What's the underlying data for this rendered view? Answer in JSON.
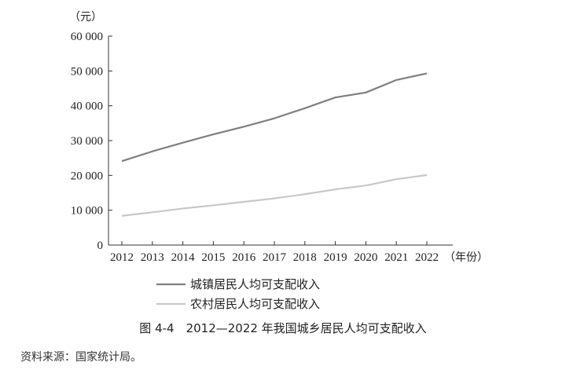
{
  "chart_data": {
    "type": "line",
    "unit_label": "（元）",
    "x_unit_label": "（年份）",
    "categories": [
      "2012",
      "2013",
      "2014",
      "2015",
      "2016",
      "2017",
      "2018",
      "2019",
      "2020",
      "2021",
      "2022"
    ],
    "ylim": [
      0,
      60000
    ],
    "yticks": [
      0,
      10000,
      20000,
      30000,
      40000,
      50000,
      60000
    ],
    "ytick_labels": [
      "0",
      "10 000",
      "20 000",
      "30 000",
      "40 000",
      "50 000",
      "60 000"
    ],
    "grid": false,
    "legend_position": "bottom-center",
    "series": [
      {
        "name": "城镇居民人均可支配收入",
        "color": "#7f7f7f",
        "values": [
          24100,
          26900,
          29400,
          31800,
          34000,
          36400,
          39300,
          42400,
          43800,
          47400,
          49300
        ]
      },
      {
        "name": "农村居民人均可支配收入",
        "color": "#c8c8c8",
        "values": [
          8400,
          9400,
          10500,
          11400,
          12400,
          13400,
          14600,
          16000,
          17100,
          18900,
          20100
        ]
      }
    ]
  },
  "caption": "图 4-4　2012—2022 年我国城乡居民人均可支配收入",
  "source": "资料来源：国家统计局。"
}
